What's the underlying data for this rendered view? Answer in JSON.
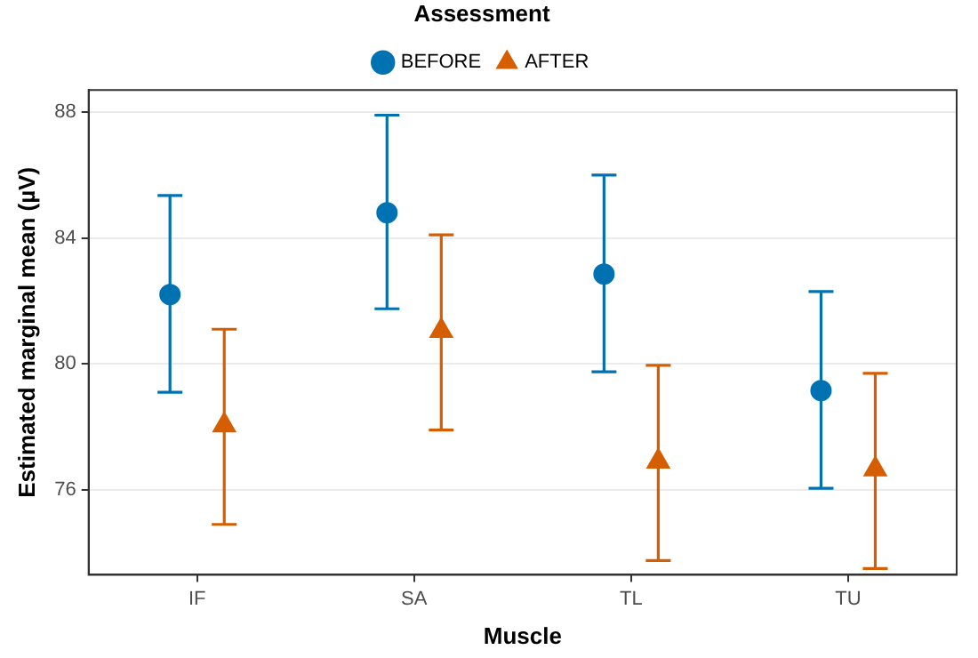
{
  "chart_data": {
    "type": "scatter",
    "xlabel": "Muscle",
    "ylabel": "Estimated marginal mean (µV)",
    "legend_title": "Assessment",
    "categories": [
      "IF",
      "SA",
      "TL",
      "TU"
    ],
    "series": [
      {
        "name": "BEFORE",
        "color": "#0072b2",
        "marker": "circle",
        "values": [
          82.2,
          84.8,
          82.85,
          79.15
        ],
        "errors": [
          [
            79.1,
            85.35
          ],
          [
            81.75,
            87.9
          ],
          [
            79.75,
            86.0
          ],
          [
            76.05,
            82.3
          ]
        ]
      },
      {
        "name": "AFTER",
        "color": "#d55e00",
        "marker": "triangle",
        "values": [
          78.05,
          81.05,
          76.9,
          76.65
        ],
        "errors": [
          [
            74.9,
            81.1
          ],
          [
            77.9,
            84.1
          ],
          [
            73.75,
            79.95
          ],
          [
            73.5,
            79.7
          ]
        ]
      }
    ],
    "ylim": [
      73.3,
      88.7
    ],
    "yticks": [
      76,
      80,
      84,
      88
    ],
    "grid": "y",
    "legend": "top"
  }
}
